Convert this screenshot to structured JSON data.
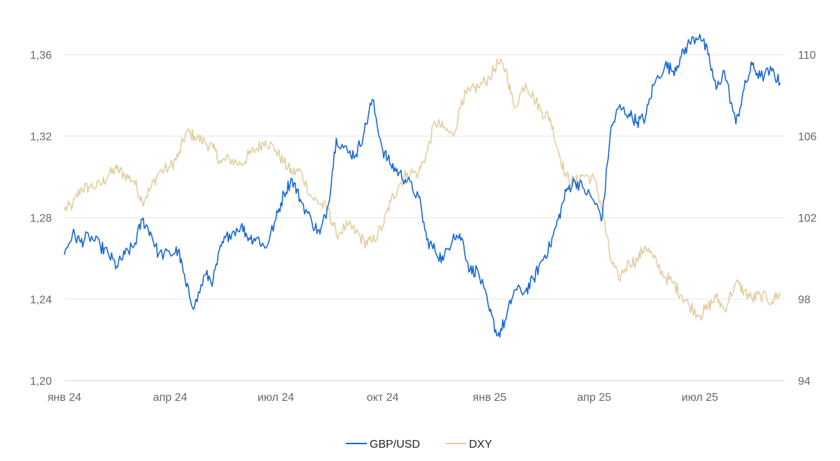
{
  "chart_data": {
    "type": "line",
    "x_labels": [
      "янв 24",
      "апр 24",
      "июл 24",
      "окт 24",
      "янв 25",
      "апр 25",
      "июл 25"
    ],
    "y_left": {
      "ticks": [
        "1,20",
        "1,24",
        "1,28",
        "1,32",
        "1,36"
      ],
      "ylim": [
        1.2,
        1.38
      ]
    },
    "y_right": {
      "ticks": [
        "94",
        "98",
        "102",
        "106",
        "110"
      ],
      "ylim": [
        94,
        112
      ]
    },
    "grid": true,
    "legend_position": "bottom",
    "series": [
      {
        "name": "GBP/USD",
        "axis": "left",
        "color": "#1565d8",
        "points": [
          [
            "2024-01-01",
            1.262
          ],
          [
            "2024-01-08",
            1.272
          ],
          [
            "2024-01-15",
            1.268
          ],
          [
            "2024-01-22",
            1.271
          ],
          [
            "2024-02-01",
            1.266
          ],
          [
            "2024-02-08",
            1.262
          ],
          [
            "2024-02-15",
            1.256
          ],
          [
            "2024-02-22",
            1.262
          ],
          [
            "2024-03-01",
            1.266
          ],
          [
            "2024-03-08",
            1.279
          ],
          [
            "2024-03-15",
            1.273
          ],
          [
            "2024-03-22",
            1.262
          ],
          [
            "2024-04-01",
            1.262
          ],
          [
            "2024-04-08",
            1.264
          ],
          [
            "2024-04-15",
            1.246
          ],
          [
            "2024-04-22",
            1.236
          ],
          [
            "2024-05-01",
            1.252
          ],
          [
            "2024-05-08",
            1.249
          ],
          [
            "2024-05-15",
            1.266
          ],
          [
            "2024-05-22",
            1.272
          ],
          [
            "2024-06-01",
            1.276
          ],
          [
            "2024-06-08",
            1.27
          ],
          [
            "2024-06-15",
            1.27
          ],
          [
            "2024-06-22",
            1.265
          ],
          [
            "2024-07-01",
            1.279
          ],
          [
            "2024-07-08",
            1.292
          ],
          [
            "2024-07-15",
            1.299
          ],
          [
            "2024-07-22",
            1.289
          ],
          [
            "2024-08-01",
            1.278
          ],
          [
            "2024-08-08",
            1.272
          ],
          [
            "2024-08-15",
            1.286
          ],
          [
            "2024-08-22",
            1.319
          ],
          [
            "2024-09-01",
            1.312
          ],
          [
            "2024-09-08",
            1.311
          ],
          [
            "2024-09-15",
            1.322
          ],
          [
            "2024-09-22",
            1.338
          ],
          [
            "2024-10-01",
            1.313
          ],
          [
            "2024-10-08",
            1.306
          ],
          [
            "2024-10-15",
            1.302
          ],
          [
            "2024-10-22",
            1.298
          ],
          [
            "2024-11-01",
            1.29
          ],
          [
            "2024-11-08",
            1.269
          ],
          [
            "2024-11-15",
            1.264
          ],
          [
            "2024-11-22",
            1.259
          ],
          [
            "2024-12-01",
            1.272
          ],
          [
            "2024-12-08",
            1.27
          ],
          [
            "2024-12-15",
            1.254
          ],
          [
            "2024-12-22",
            1.254
          ],
          [
            "2025-01-01",
            1.234
          ],
          [
            "2025-01-08",
            1.222
          ],
          [
            "2025-01-15",
            1.23
          ],
          [
            "2025-01-22",
            1.244
          ],
          [
            "2025-02-01",
            1.244
          ],
          [
            "2025-02-08",
            1.25
          ],
          [
            "2025-02-15",
            1.259
          ],
          [
            "2025-02-22",
            1.266
          ],
          [
            "2025-03-01",
            1.279
          ],
          [
            "2025-03-08",
            1.293
          ],
          [
            "2025-03-15",
            1.298
          ],
          [
            "2025-03-22",
            1.295
          ],
          [
            "2025-04-01",
            1.288
          ],
          [
            "2025-04-08",
            1.28
          ],
          [
            "2025-04-15",
            1.322
          ],
          [
            "2025-04-22",
            1.334
          ],
          [
            "2025-05-01",
            1.331
          ],
          [
            "2025-05-08",
            1.327
          ],
          [
            "2025-05-15",
            1.329
          ],
          [
            "2025-05-22",
            1.345
          ],
          [
            "2025-06-01",
            1.355
          ],
          [
            "2025-06-08",
            1.352
          ],
          [
            "2025-06-15",
            1.359
          ],
          [
            "2025-06-22",
            1.366
          ],
          [
            "2025-07-01",
            1.37
          ],
          [
            "2025-07-08",
            1.36
          ],
          [
            "2025-07-15",
            1.343
          ],
          [
            "2025-07-22",
            1.352
          ],
          [
            "2025-08-01",
            1.326
          ],
          [
            "2025-08-08",
            1.343
          ],
          [
            "2025-08-15",
            1.355
          ],
          [
            "2025-08-22",
            1.349
          ],
          [
            "2025-09-01",
            1.352
          ],
          [
            "2025-09-08",
            1.346
          ]
        ]
      },
      {
        "name": "DXY",
        "axis": "right",
        "color": "#e3cd9f",
        "points": [
          [
            "2024-01-01",
            102.4
          ],
          [
            "2024-01-08",
            102.6
          ],
          [
            "2024-01-15",
            103.4
          ],
          [
            "2024-01-22",
            103.5
          ],
          [
            "2024-02-01",
            103.6
          ],
          [
            "2024-02-08",
            104.1
          ],
          [
            "2024-02-15",
            104.4
          ],
          [
            "2024-02-22",
            104.1
          ],
          [
            "2024-03-01",
            103.8
          ],
          [
            "2024-03-08",
            102.8
          ],
          [
            "2024-03-15",
            103.4
          ],
          [
            "2024-03-22",
            104.2
          ],
          [
            "2024-04-01",
            104.5
          ],
          [
            "2024-04-08",
            105.0
          ],
          [
            "2024-04-15",
            106.2
          ],
          [
            "2024-04-22",
            106.0
          ],
          [
            "2024-05-01",
            105.7
          ],
          [
            "2024-05-08",
            105.4
          ],
          [
            "2024-05-15",
            104.7
          ],
          [
            "2024-05-22",
            104.9
          ],
          [
            "2024-06-01",
            104.6
          ],
          [
            "2024-06-08",
            105.1
          ],
          [
            "2024-06-15",
            105.4
          ],
          [
            "2024-06-22",
            105.8
          ],
          [
            "2024-07-01",
            105.3
          ],
          [
            "2024-07-08",
            104.7
          ],
          [
            "2024-07-15",
            104.2
          ],
          [
            "2024-07-22",
            104.3
          ],
          [
            "2024-08-01",
            103.0
          ],
          [
            "2024-08-08",
            102.7
          ],
          [
            "2024-08-15",
            102.4
          ],
          [
            "2024-08-22",
            101.2
          ],
          [
            "2024-09-01",
            101.6
          ],
          [
            "2024-09-08",
            101.3
          ],
          [
            "2024-09-15",
            100.8
          ],
          [
            "2024-09-22",
            100.8
          ],
          [
            "2024-10-01",
            101.6
          ],
          [
            "2024-10-08",
            102.8
          ],
          [
            "2024-10-15",
            103.6
          ],
          [
            "2024-10-22",
            104.2
          ],
          [
            "2024-11-01",
            104.2
          ],
          [
            "2024-11-08",
            105.2
          ],
          [
            "2024-11-15",
            106.7
          ],
          [
            "2024-11-22",
            106.4
          ],
          [
            "2024-12-01",
            106.0
          ],
          [
            "2024-12-08",
            107.8
          ],
          [
            "2024-12-15",
            108.2
          ],
          [
            "2024-12-22",
            108.4
          ],
          [
            "2025-01-01",
            108.9
          ],
          [
            "2025-01-08",
            109.6
          ],
          [
            "2025-01-15",
            109.3
          ],
          [
            "2025-01-22",
            107.4
          ],
          [
            "2025-02-01",
            108.6
          ],
          [
            "2025-02-08",
            107.9
          ],
          [
            "2025-02-15",
            107.2
          ],
          [
            "2025-02-22",
            106.9
          ],
          [
            "2025-03-01",
            105.3
          ],
          [
            "2025-03-08",
            104.0
          ],
          [
            "2025-03-15",
            103.7
          ],
          [
            "2025-03-22",
            104.1
          ],
          [
            "2025-04-01",
            103.9
          ],
          [
            "2025-04-08",
            102.4
          ],
          [
            "2025-04-15",
            100.0
          ],
          [
            "2025-04-22",
            99.0
          ],
          [
            "2025-05-01",
            99.8
          ],
          [
            "2025-05-08",
            99.9
          ],
          [
            "2025-05-15",
            100.6
          ],
          [
            "2025-05-22",
            100.0
          ],
          [
            "2025-06-01",
            99.1
          ],
          [
            "2025-06-08",
            98.8
          ],
          [
            "2025-06-15",
            98.2
          ],
          [
            "2025-06-22",
            97.7
          ],
          [
            "2025-07-01",
            97.2
          ],
          [
            "2025-07-08",
            97.6
          ],
          [
            "2025-07-15",
            98.1
          ],
          [
            "2025-07-22",
            97.5
          ],
          [
            "2025-08-01",
            98.8
          ],
          [
            "2025-08-08",
            98.4
          ],
          [
            "2025-08-15",
            98.0
          ],
          [
            "2025-08-22",
            98.2
          ],
          [
            "2025-09-01",
            97.9
          ],
          [
            "2025-09-08",
            98.3
          ]
        ]
      }
    ]
  }
}
